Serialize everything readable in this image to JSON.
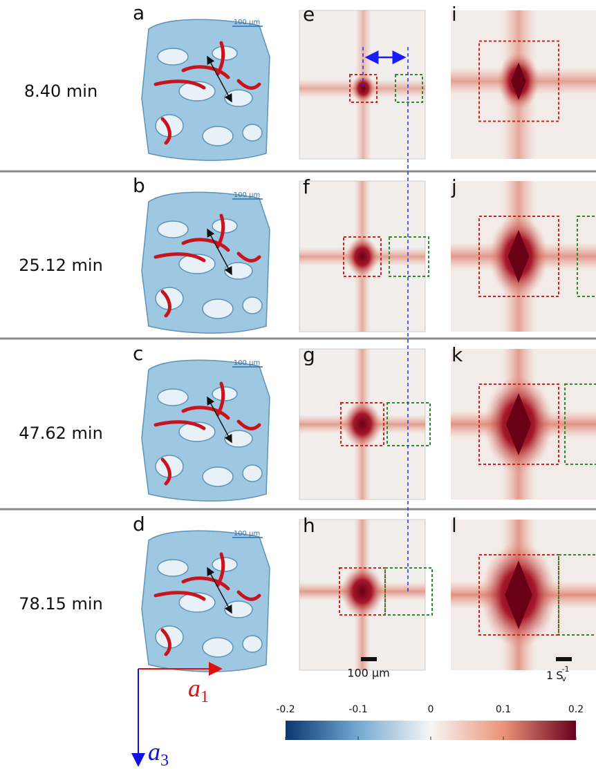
{
  "rows": [
    {
      "time": "8.40 min",
      "structure_letter": "a",
      "real_letter": "e",
      "reciprocal_letter": "i",
      "inset_scale": "100 μm"
    },
    {
      "time": "25.12 min",
      "structure_letter": "b",
      "real_letter": "f",
      "reciprocal_letter": "j",
      "inset_scale": "100 μm"
    },
    {
      "time": "47.62 min",
      "structure_letter": "c",
      "real_letter": "g",
      "reciprocal_letter": "k",
      "inset_scale": "100 μm"
    },
    {
      "time": "78.15 min",
      "structure_letter": "d",
      "real_letter": "h",
      "reciprocal_letter": "l",
      "inset_scale": "100 μm"
    }
  ],
  "real_scale": "100 µm",
  "reciprocal_scale": {
    "number": "1",
    "symbol": "S",
    "subscript": "v",
    "superscript": "-1"
  },
  "axes": {
    "horizontal": {
      "letter": "a",
      "index": "1"
    },
    "vertical": {
      "letter": "a",
      "index": "3"
    }
  },
  "colorbar": {
    "range": [
      -0.2,
      0.2
    ],
    "ticks": [
      -0.2,
      -0.1,
      0,
      0.1,
      0.2
    ]
  }
}
